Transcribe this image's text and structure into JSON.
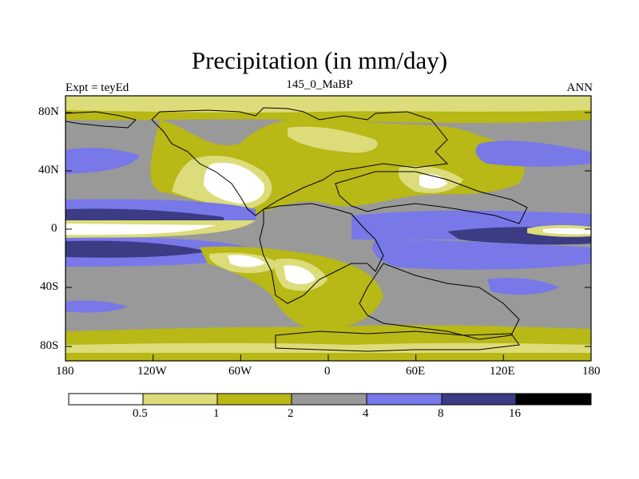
{
  "title": "Precipitation (in mm/day)",
  "subtitle_left": "Expt = teyEd",
  "subtitle_center": "145_0_MaBP",
  "subtitle_right": "ANN",
  "lat_labels": [
    "80N",
    "40N",
    "0",
    "40S",
    "80S"
  ],
  "lon_labels": [
    "180",
    "120W",
    "60W",
    "0",
    "60E",
    "120E",
    "180"
  ],
  "colorbar": {
    "labels": [
      "0.5",
      "1",
      "2",
      "4",
      "8",
      "16"
    ],
    "colors": [
      "#ffffff",
      "#dcdc7a",
      "#b8b816",
      "#999999",
      "#7878e8",
      "#3c3c84",
      "#000000"
    ]
  },
  "palette": {
    "white": "#ffffff",
    "pale": "#dcdc7a",
    "olive": "#b8b816",
    "gray": "#999999",
    "blue": "#7878e8",
    "navy": "#3c3c84"
  }
}
